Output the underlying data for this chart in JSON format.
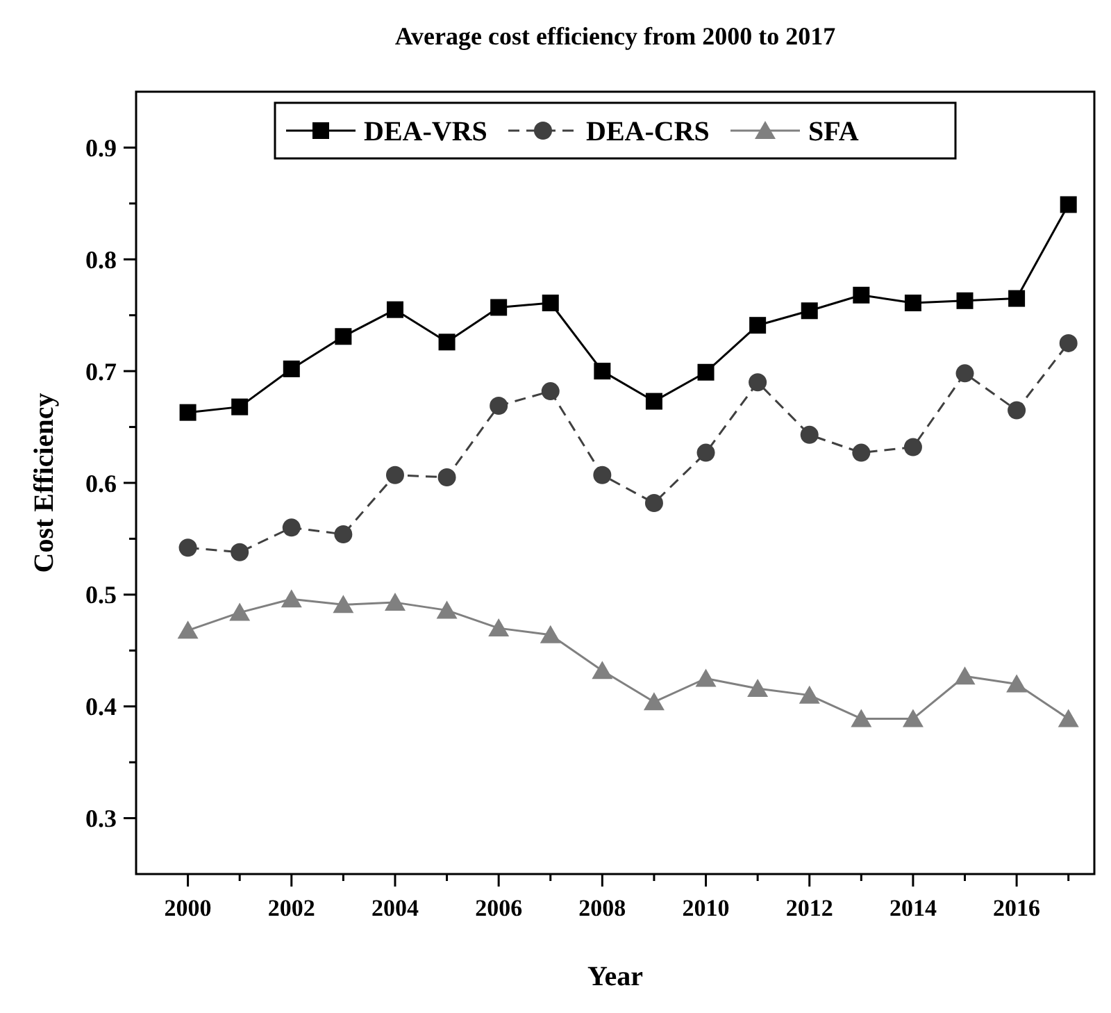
{
  "chart_data": {
    "type": "line",
    "title": "Average cost efficiency from 2000 to 2017",
    "xlabel": "Year",
    "ylabel": "Cost Efficiency",
    "x": [
      2000,
      2001,
      2002,
      2003,
      2004,
      2005,
      2006,
      2007,
      2008,
      2009,
      2010,
      2011,
      2012,
      2013,
      2014,
      2015,
      2016,
      2017
    ],
    "series": [
      {
        "name": "DEA-VRS",
        "color": "#000000",
        "marker": "square",
        "line_style": "solid",
        "values": [
          0.663,
          0.668,
          0.702,
          0.731,
          0.755,
          0.726,
          0.757,
          0.761,
          0.7,
          0.673,
          0.699,
          0.741,
          0.754,
          0.768,
          0.761,
          0.763,
          0.765,
          0.849
        ]
      },
      {
        "name": "DEA-CRS",
        "color": "#404040",
        "marker": "circle",
        "line_style": "dashed",
        "values": [
          0.542,
          0.538,
          0.56,
          0.554,
          0.607,
          0.605,
          0.669,
          0.682,
          0.607,
          0.582,
          0.627,
          0.69,
          0.643,
          0.627,
          0.632,
          0.698,
          0.665,
          0.725
        ]
      },
      {
        "name": "SFA",
        "color": "#808080",
        "marker": "triangle",
        "line_style": "solid",
        "values": [
          0.468,
          0.484,
          0.496,
          0.491,
          0.493,
          0.486,
          0.47,
          0.464,
          0.432,
          0.404,
          0.425,
          0.416,
          0.41,
          0.389,
          0.389,
          0.427,
          0.42,
          0.389
        ]
      }
    ],
    "xlim": [
      1999,
      2017.5
    ],
    "xticks": [
      2000,
      {
        "value": 2001,
        "label": null
      },
      2002,
      {
        "value": 2003,
        "label": null
      },
      2004,
      {
        "value": 2005,
        "label": null
      },
      2006,
      {
        "value": 2007,
        "label": null
      },
      2008,
      {
        "value": 2009,
        "label": null
      },
      2010,
      {
        "value": 2011,
        "label": null
      },
      2012,
      {
        "value": 2013,
        "label": null
      },
      2014,
      {
        "value": 2015,
        "label": null
      },
      2016,
      {
        "value": 2017,
        "label": null
      }
    ],
    "ylim": [
      0.25,
      0.95
    ],
    "yticks": [
      {
        "value": 0.3,
        "label": "0.3"
      },
      {
        "value": 0.35,
        "label": null
      },
      {
        "value": 0.4,
        "label": "0.4"
      },
      {
        "value": 0.45,
        "label": null
      },
      {
        "value": 0.5,
        "label": "0.5"
      },
      {
        "value": 0.55,
        "label": null
      },
      {
        "value": 0.6,
        "label": "0.6"
      },
      {
        "value": 0.65,
        "label": null
      },
      {
        "value": 0.7,
        "label": "0.7"
      },
      {
        "value": 0.75,
        "label": null
      },
      {
        "value": 0.8,
        "label": "0.8"
      },
      {
        "value": 0.85,
        "label": null
      },
      {
        "value": 0.9,
        "label": "0.9"
      }
    ],
    "legend": "top",
    "grid": false
  }
}
